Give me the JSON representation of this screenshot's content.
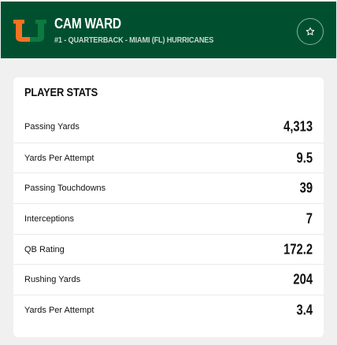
{
  "header": {
    "player_name": "CAM WARD",
    "player_subtitle": "#1 - QUARTERBACK - MIAMI (FL) HURRICANES",
    "logo_icon": "miami-u-logo",
    "favorite_icon": "star-outline-icon",
    "colors": {
      "background": "#005030",
      "logo_orange": "#f47321",
      "logo_green": "#0d7a3f"
    }
  },
  "stats_card": {
    "title": "PLAYER STATS",
    "rows": [
      {
        "label": "Passing Yards",
        "value": "4,313"
      },
      {
        "label": "Yards Per Attempt",
        "value": "9.5"
      },
      {
        "label": "Passing Touchdowns",
        "value": "39"
      },
      {
        "label": "Interceptions",
        "value": "7"
      },
      {
        "label": "QB Rating",
        "value": "172.2"
      },
      {
        "label": "Rushing Yards",
        "value": "204"
      },
      {
        "label": "Yards Per Attempt",
        "value": "3.4"
      }
    ]
  }
}
